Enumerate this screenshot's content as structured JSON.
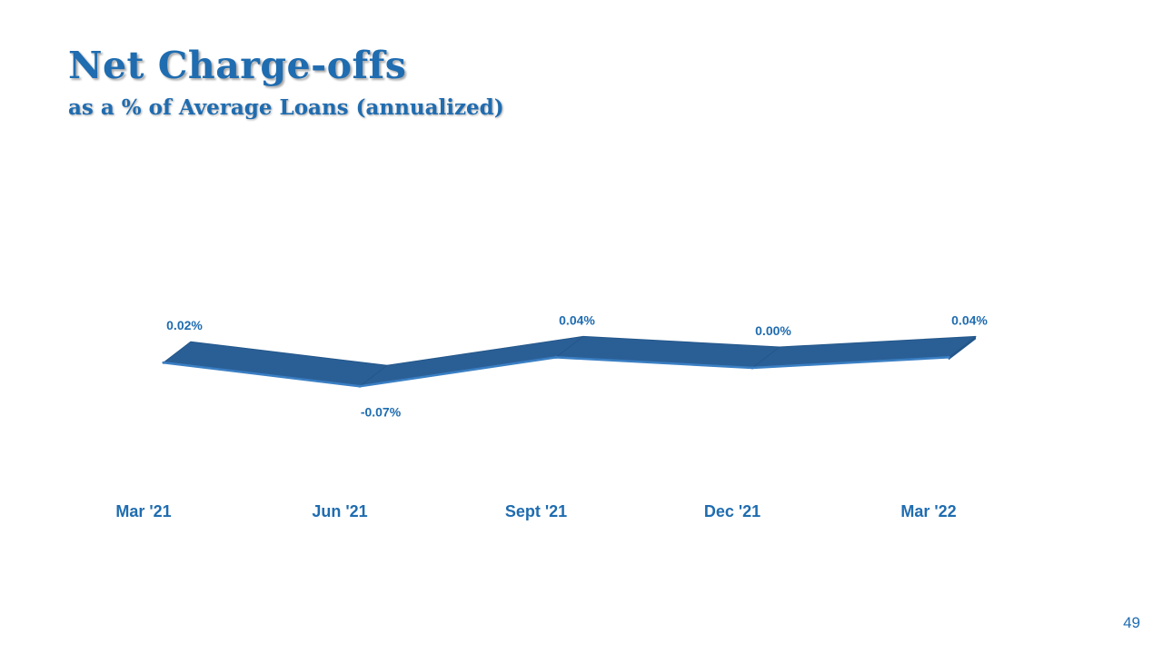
{
  "slide": {
    "title": "Net Charge-offs",
    "subtitle": "as a % of Average Loans (annualized)",
    "page_number": "49"
  },
  "colors": {
    "accent": "#1f6cb0",
    "ribbon_top": "#2a5f96",
    "ribbon_front": "#24578a",
    "ribbon_edge": "#3a7fc4"
  },
  "chart_data": {
    "type": "line",
    "categories": [
      "Mar '21",
      "Jun '21",
      "Sept '21",
      "Dec '21",
      "Mar '22"
    ],
    "series": [
      {
        "values": [
          0.02,
          -0.07,
          0.04,
          0.0,
          0.04
        ],
        "labels": [
          "0.02%",
          "-0.07%",
          "0.04%",
          "0.00%",
          "0.04%"
        ]
      }
    ],
    "title": "",
    "xlabel": "",
    "ylabel": "",
    "ylim": [
      -0.3,
      0.3
    ],
    "grid": false,
    "legend": "none",
    "style": "3d-ribbon"
  }
}
